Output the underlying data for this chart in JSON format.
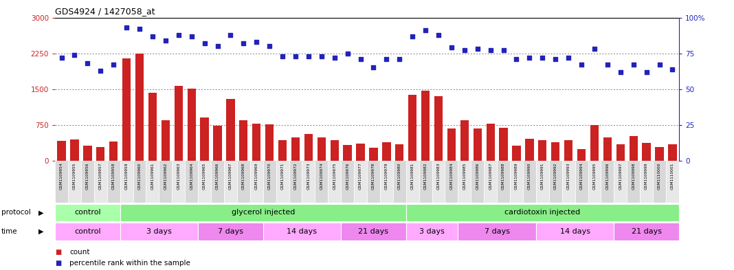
{
  "title": "GDS4924 / 1427058_at",
  "sample_ids": [
    "GSM1109954",
    "GSM1109955",
    "GSM1109956",
    "GSM1109957",
    "GSM1109958",
    "GSM1109959",
    "GSM1109960",
    "GSM1109961",
    "GSM1109962",
    "GSM1109963",
    "GSM1109964",
    "GSM1109965",
    "GSM1109966",
    "GSM1109967",
    "GSM1109968",
    "GSM1109969",
    "GSM1109970",
    "GSM1109971",
    "GSM1109972",
    "GSM1109973",
    "GSM1109974",
    "GSM1109975",
    "GSM1109976",
    "GSM1109977",
    "GSM1109978",
    "GSM1109979",
    "GSM1109980",
    "GSM1109981",
    "GSM1109982",
    "GSM1109983",
    "GSM1109984",
    "GSM1109985",
    "GSM1109986",
    "GSM1109987",
    "GSM1109988",
    "GSM1109989",
    "GSM1109990",
    "GSM1109991",
    "GSM1109992",
    "GSM1109993",
    "GSM1109994",
    "GSM1109995",
    "GSM1109996",
    "GSM1109997",
    "GSM1109998",
    "GSM1109999",
    "GSM1110000",
    "GSM1110001"
  ],
  "bar_values": [
    420,
    440,
    310,
    280,
    400,
    2150,
    2250,
    1420,
    850,
    1570,
    1510,
    900,
    730,
    1290,
    850,
    780,
    760,
    430,
    490,
    560,
    490,
    430,
    330,
    360,
    270,
    390,
    340,
    1380,
    1470,
    1350,
    680,
    850,
    680,
    770,
    690,
    310,
    460,
    430,
    380,
    430,
    240,
    750,
    490,
    340,
    510,
    370,
    290,
    340
  ],
  "dot_values": [
    72,
    74,
    68,
    63,
    67,
    93,
    92,
    87,
    84,
    88,
    87,
    82,
    80,
    88,
    82,
    83,
    80,
    73,
    73,
    73,
    73,
    72,
    75,
    71,
    65,
    71,
    71,
    87,
    91,
    88,
    79,
    77,
    78,
    77,
    77,
    71,
    72,
    72,
    71,
    72,
    67,
    78,
    67,
    62,
    67,
    62,
    67,
    64
  ],
  "bar_color": "#cc2222",
  "dot_color": "#2222bb",
  "ylim_left": [
    0,
    3000
  ],
  "ylim_right": [
    0,
    100
  ],
  "yticks_left": [
    0,
    750,
    1500,
    2250,
    3000
  ],
  "yticks_right": [
    0,
    25,
    50,
    75,
    100
  ],
  "protocol_groups": [
    {
      "label": "control",
      "start": 0,
      "end": 5,
      "color": "#aaffaa"
    },
    {
      "label": "glycerol injected",
      "start": 5,
      "end": 27,
      "color": "#88ee88"
    },
    {
      "label": "cardiotoxin injected",
      "start": 27,
      "end": 48,
      "color": "#88ee88"
    }
  ],
  "time_groups": [
    {
      "label": "control",
      "start": 0,
      "end": 5,
      "color": "#ffaaff"
    },
    {
      "label": "3 days",
      "start": 5,
      "end": 11,
      "color": "#ffaaff"
    },
    {
      "label": "7 days",
      "start": 11,
      "end": 16,
      "color": "#ee88ee"
    },
    {
      "label": "14 days",
      "start": 16,
      "end": 22,
      "color": "#ffaaff"
    },
    {
      "label": "21 days",
      "start": 22,
      "end": 27,
      "color": "#ee88ee"
    },
    {
      "label": "3 days",
      "start": 27,
      "end": 31,
      "color": "#ffaaff"
    },
    {
      "label": "7 days",
      "start": 31,
      "end": 37,
      "color": "#ee88ee"
    },
    {
      "label": "14 days",
      "start": 37,
      "end": 43,
      "color": "#ffaaff"
    },
    {
      "label": "21 days",
      "start": 43,
      "end": 48,
      "color": "#ee88ee"
    }
  ],
  "bg_color": "#ffffff",
  "plot_bg": "#ffffff",
  "grid_color": "#555555",
  "tick_bg": "#d8d8d8",
  "tick_border": "#ffffff"
}
